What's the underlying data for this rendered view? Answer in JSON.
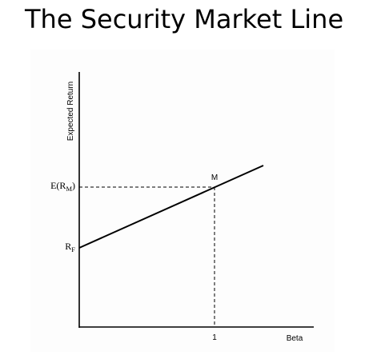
{
  "title": "The Security Market Line",
  "diagram": {
    "y_axis_label": "Expected Return",
    "x_axis_label": "Beta",
    "market_point_label": "M",
    "market_return_label": {
      "main": "E(R",
      "sub": "M",
      "close": ")"
    },
    "risk_free_label": {
      "main": "R",
      "sub": "F"
    },
    "beta_tick_label": "1",
    "line_color": "#000000"
  }
}
